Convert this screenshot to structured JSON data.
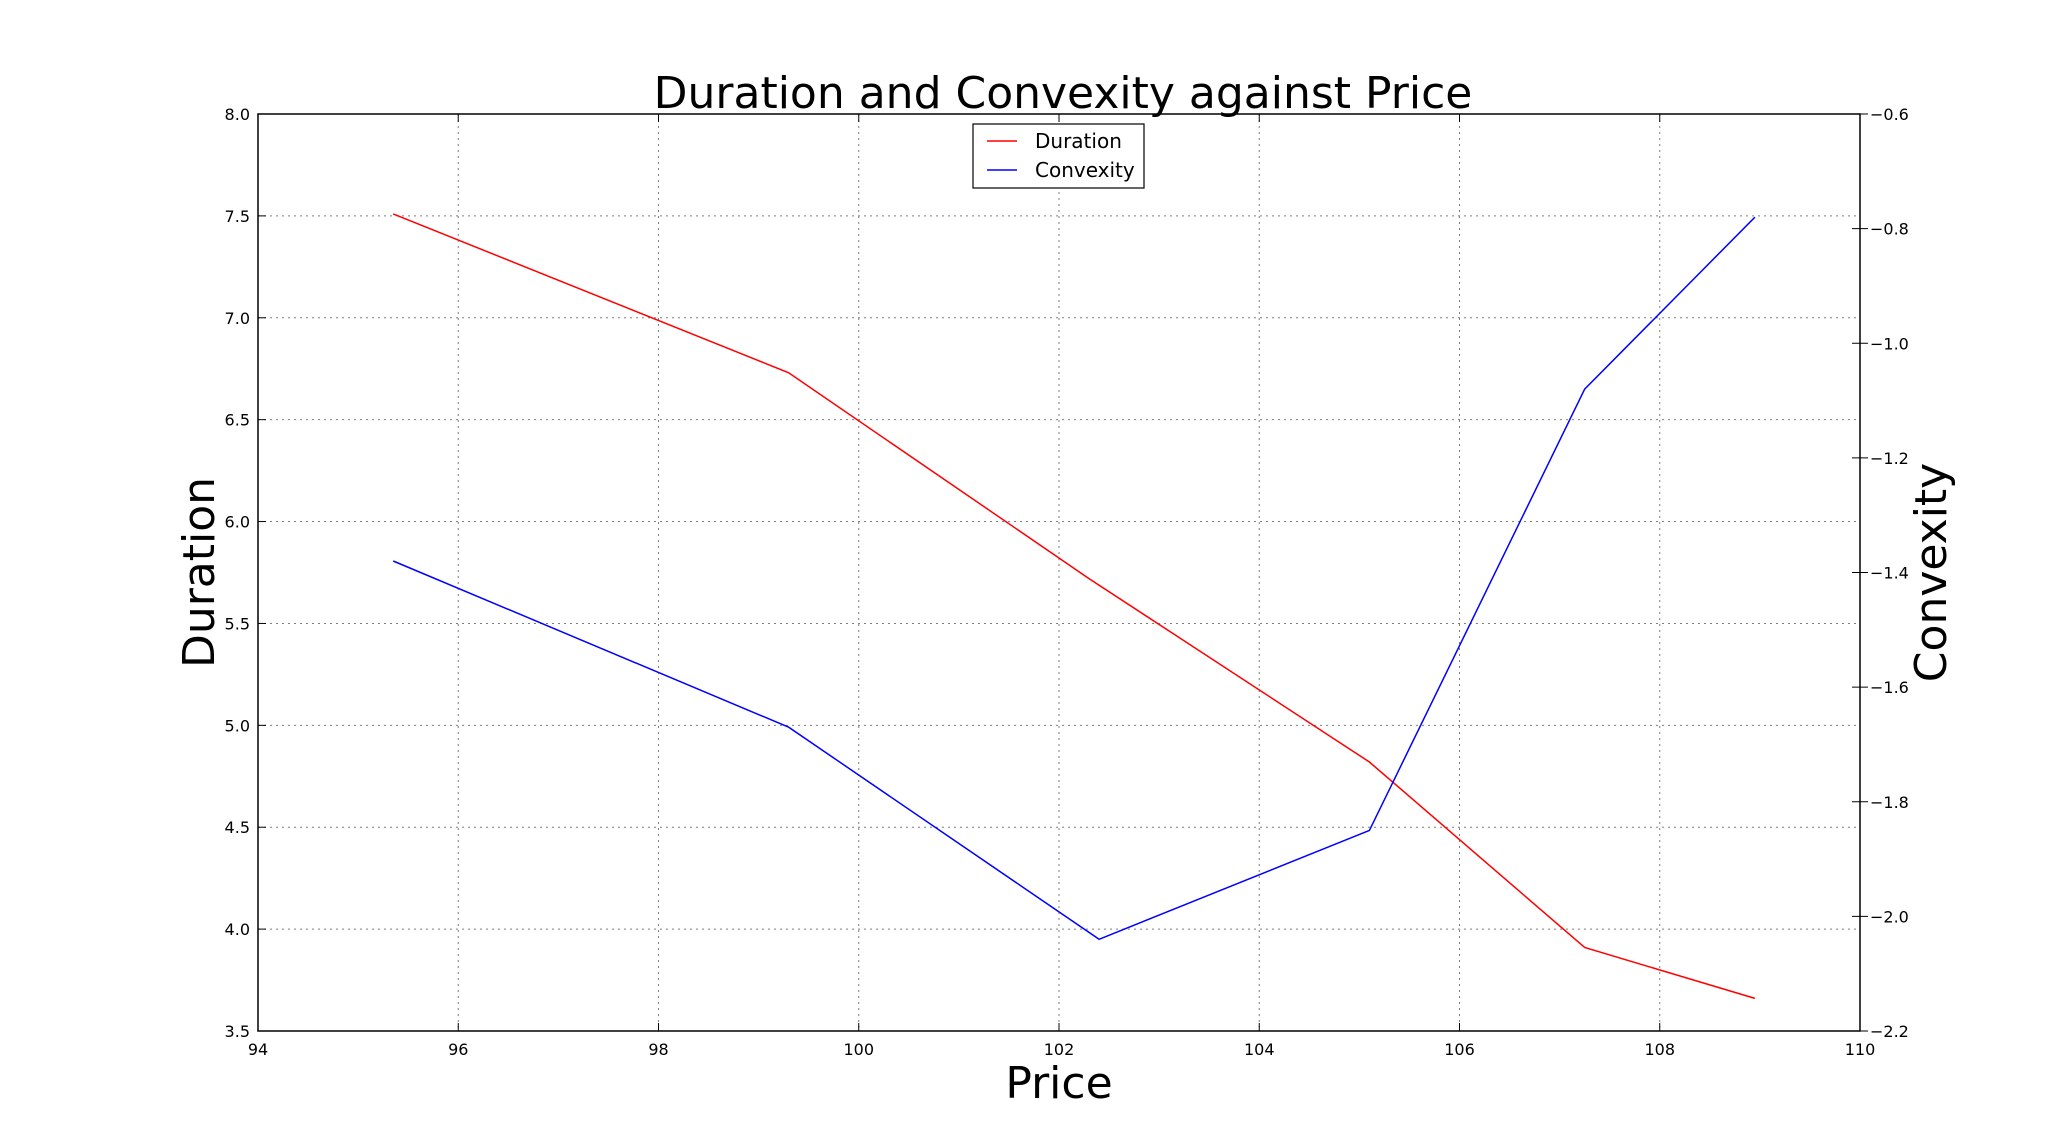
{
  "chart_data": {
    "type": "line",
    "title": "Duration and Convexity against Price",
    "xlabel": "Price",
    "ylabel": "Duration",
    "y2label": "Convexity",
    "xlim": [
      94,
      110
    ],
    "ylim": [
      3.5,
      8.0
    ],
    "y2lim": [
      -2.2,
      -0.6
    ],
    "xticks": [
      "94",
      "96",
      "98",
      "100",
      "102",
      "104",
      "106",
      "108",
      "110"
    ],
    "yticks": [
      "3.5",
      "4.0",
      "4.5",
      "5.0",
      "5.5",
      "6.0",
      "6.5",
      "7.0",
      "7.5",
      "8.0"
    ],
    "y2ticks": [
      "−2.2",
      "−2.0",
      "−1.8",
      "−1.6",
      "−1.4",
      "−1.2",
      "−1.0",
      "−0.8",
      "−0.6"
    ],
    "grid": true,
    "legend_position": "top-center",
    "series": [
      {
        "name": "Duration",
        "axis": "left",
        "color": "#ff0000",
        "x": [
          95.35,
          99.3,
          102.3,
          105.1,
          107.25,
          108.95
        ],
        "values": [
          7.51,
          6.73,
          5.72,
          4.82,
          3.91,
          3.66
        ]
      },
      {
        "name": "Convexity",
        "axis": "right",
        "color": "#0000ff",
        "x": [
          95.35,
          99.3,
          102.4,
          105.1,
          107.25,
          108.95
        ],
        "values": [
          -1.38,
          -1.67,
          -2.04,
          -1.85,
          -1.08,
          -0.78
        ]
      }
    ]
  }
}
